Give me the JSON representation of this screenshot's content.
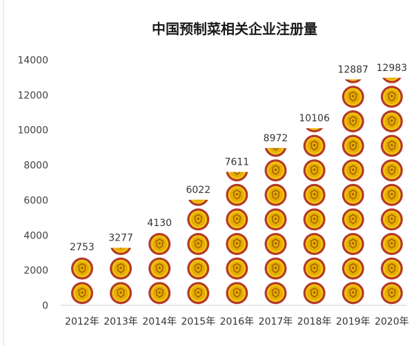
{
  "chart_data": {
    "type": "bar",
    "title": "中国预制菜相关企业注册量",
    "xlabel": "",
    "ylabel": "",
    "categories": [
      "2012年",
      "2013年",
      "2014年",
      "2015年",
      "2016年",
      "2017年",
      "2018年",
      "2019年",
      "2020年"
    ],
    "values": [
      2753,
      3277,
      4130,
      6022,
      7611,
      8972,
      10106,
      12887,
      12983
    ],
    "ylim": [
      0,
      14000
    ],
    "yticks": [
      0,
      2000,
      4000,
      6000,
      8000,
      10000,
      12000,
      14000
    ],
    "grid": false,
    "legend": "none",
    "pictograph_unit": 1400,
    "colors": {
      "coin_outer": "#b23a2a",
      "coin_ring": "#f2c40f",
      "coin_inner": "#e6ab00",
      "coin_emblem": "#9a5b00",
      "axis": "#cccccc"
    }
  }
}
